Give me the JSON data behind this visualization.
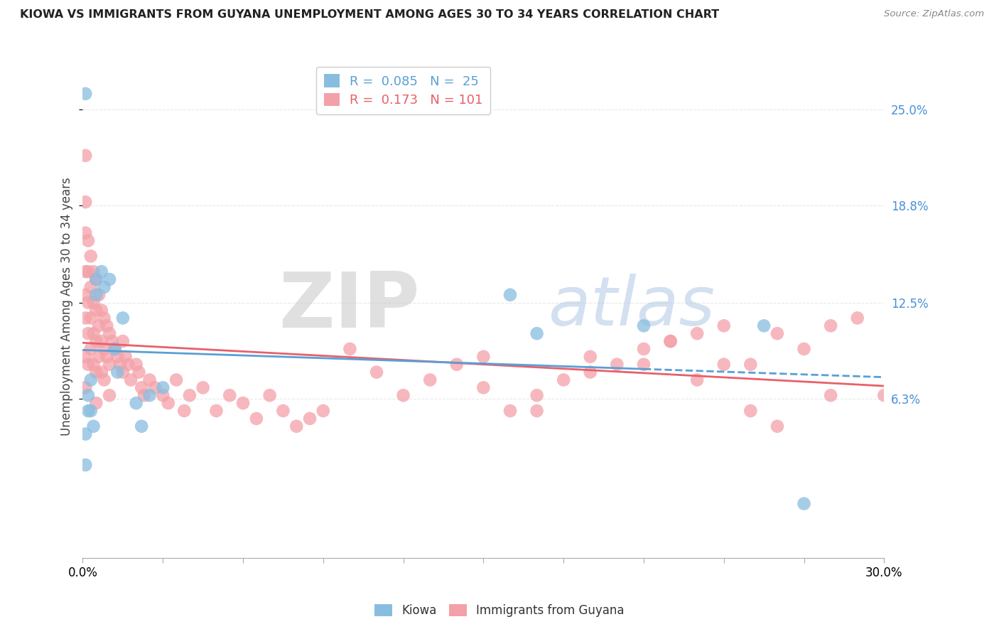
{
  "title": "KIOWA VS IMMIGRANTS FROM GUYANA UNEMPLOYMENT AMONG AGES 30 TO 34 YEARS CORRELATION CHART",
  "source": "Source: ZipAtlas.com",
  "ylabel": "Unemployment Among Ages 30 to 34 years",
  "xlim": [
    0.0,
    0.3
  ],
  "ylim": [
    -0.04,
    0.285
  ],
  "y_ticks": [
    0.063,
    0.125,
    0.188,
    0.25
  ],
  "y_tick_labels": [
    "6.3%",
    "12.5%",
    "18.8%",
    "25.0%"
  ],
  "kiowa_color": "#89bde0",
  "guyana_color": "#f4a0a8",
  "kiowa_line_color": "#5a9fd4",
  "guyana_line_color": "#e8606a",
  "watermark_zip": "ZIP",
  "watermark_atlas": "atlas",
  "watermark_zip_color": "#cccccc",
  "watermark_atlas_color": "#b8cfe8",
  "R_kiowa": 0.085,
  "N_kiowa": 25,
  "R_guyana": 0.173,
  "N_guyana": 101,
  "background_color": "#ffffff",
  "grid_color": "#e8e8e8",
  "kiowa_x": [
    0.001,
    0.001,
    0.001,
    0.002,
    0.002,
    0.003,
    0.003,
    0.004,
    0.005,
    0.005,
    0.007,
    0.008,
    0.01,
    0.012,
    0.013,
    0.015,
    0.02,
    0.022,
    0.025,
    0.03,
    0.16,
    0.17,
    0.21,
    0.255,
    0.27
  ],
  "kiowa_y": [
    0.26,
    0.04,
    0.02,
    0.065,
    0.055,
    0.075,
    0.055,
    0.045,
    0.14,
    0.13,
    0.145,
    0.135,
    0.14,
    0.095,
    0.08,
    0.115,
    0.06,
    0.045,
    0.065,
    0.07,
    0.13,
    0.105,
    0.11,
    0.11,
    -0.005
  ],
  "guyana_x": [
    0.001,
    0.001,
    0.001,
    0.001,
    0.001,
    0.001,
    0.001,
    0.001,
    0.002,
    0.002,
    0.002,
    0.002,
    0.002,
    0.003,
    0.003,
    0.003,
    0.003,
    0.004,
    0.004,
    0.004,
    0.004,
    0.005,
    0.005,
    0.005,
    0.005,
    0.005,
    0.006,
    0.006,
    0.006,
    0.007,
    0.007,
    0.007,
    0.008,
    0.008,
    0.008,
    0.009,
    0.009,
    0.01,
    0.01,
    0.01,
    0.011,
    0.012,
    0.013,
    0.014,
    0.015,
    0.015,
    0.016,
    0.017,
    0.018,
    0.02,
    0.021,
    0.022,
    0.023,
    0.025,
    0.027,
    0.03,
    0.032,
    0.035,
    0.038,
    0.04,
    0.045,
    0.05,
    0.055,
    0.06,
    0.065,
    0.07,
    0.075,
    0.08,
    0.085,
    0.09,
    0.1,
    0.11,
    0.12,
    0.13,
    0.14,
    0.15,
    0.16,
    0.17,
    0.18,
    0.19,
    0.2,
    0.21,
    0.22,
    0.23,
    0.24,
    0.25,
    0.26,
    0.27,
    0.28,
    0.29,
    0.3,
    0.22,
    0.24,
    0.26,
    0.28,
    0.25,
    0.23,
    0.21,
    0.19,
    0.17,
    0.15
  ],
  "guyana_y": [
    0.22,
    0.19,
    0.17,
    0.145,
    0.13,
    0.115,
    0.09,
    0.07,
    0.165,
    0.145,
    0.125,
    0.105,
    0.085,
    0.155,
    0.135,
    0.115,
    0.095,
    0.145,
    0.125,
    0.105,
    0.085,
    0.14,
    0.12,
    0.1,
    0.08,
    0.06,
    0.13,
    0.11,
    0.09,
    0.12,
    0.1,
    0.08,
    0.115,
    0.095,
    0.075,
    0.11,
    0.09,
    0.105,
    0.085,
    0.065,
    0.1,
    0.095,
    0.09,
    0.085,
    0.1,
    0.08,
    0.09,
    0.085,
    0.075,
    0.085,
    0.08,
    0.07,
    0.065,
    0.075,
    0.07,
    0.065,
    0.06,
    0.075,
    0.055,
    0.065,
    0.07,
    0.055,
    0.065,
    0.06,
    0.05,
    0.065,
    0.055,
    0.045,
    0.05,
    0.055,
    0.095,
    0.08,
    0.065,
    0.075,
    0.085,
    0.09,
    0.055,
    0.065,
    0.075,
    0.08,
    0.085,
    0.095,
    0.1,
    0.105,
    0.11,
    0.085,
    0.105,
    0.095,
    0.11,
    0.115,
    0.065,
    0.1,
    0.085,
    0.045,
    0.065,
    0.055,
    0.075,
    0.085,
    0.09,
    0.055,
    0.07
  ]
}
